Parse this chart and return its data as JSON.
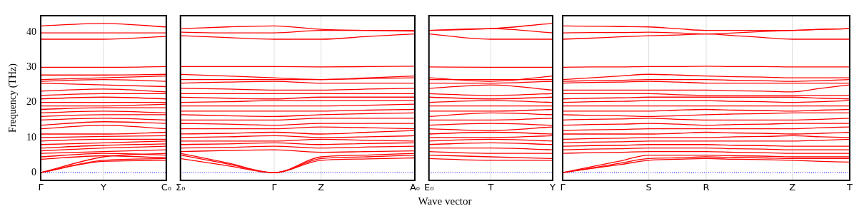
{
  "chart_data": [
    {
      "type": "line",
      "ylabel": "Frequency (THz)",
      "categories": [
        "Γ",
        "Y",
        "C₀"
      ],
      "ylim": [
        -2.2,
        44.7
      ],
      "yticks": [
        0,
        10,
        20,
        30,
        40
      ],
      "ref_lines": [
        {
          "axis": "y",
          "value": 0,
          "color": "#0000ff",
          "line_style": "dotted"
        },
        {
          "axis": "x",
          "value": "Y",
          "color": "#dddddd"
        }
      ],
      "series": [
        {
          "color": "#ff0000",
          "values": [
            0,
            3.2,
            3.5
          ]
        },
        {
          "color": "#ff0000",
          "values": [
            0,
            3.5,
            4
          ]
        },
        {
          "color": "#ff0000",
          "values": [
            0,
            4.5,
            5.5
          ]
        },
        {
          "color": "#ff0000",
          "values": [
            3.8,
            4.8,
            4.2
          ]
        },
        {
          "color": "#ff0000",
          "values": [
            4.5,
            5.5,
            5
          ]
        },
        {
          "color": "#ff0000",
          "values": [
            5.5,
            6,
            6.5
          ]
        },
        {
          "color": "#ff0000",
          "values": [
            6.2,
            7,
            7.5
          ]
        },
        {
          "color": "#ff0000",
          "values": [
            7,
            7.8,
            8.2
          ]
        },
        {
          "color": "#ff0000",
          "values": [
            8,
            8.5,
            9
          ]
        },
        {
          "color": "#ff0000",
          "values": [
            9,
            9.5,
            9.5
          ]
        },
        {
          "color": "#ff0000",
          "values": [
            10,
            10.3,
            10.5
          ]
        },
        {
          "color": "#ff0000",
          "values": [
            11,
            11,
            11.5
          ]
        },
        {
          "color": "#ff0000",
          "values": [
            12.5,
            13.5,
            12.5
          ]
        },
        {
          "color": "#ff0000",
          "values": [
            13.5,
            14.5,
            14
          ]
        },
        {
          "color": "#ff0000",
          "values": [
            15,
            15.5,
            15
          ]
        },
        {
          "color": "#ff0000",
          "values": [
            16,
            16.5,
            16.5
          ]
        },
        {
          "color": "#ff0000",
          "values": [
            17,
            17.5,
            17
          ]
        },
        {
          "color": "#ff0000",
          "values": [
            18,
            18.5,
            18.5
          ]
        },
        {
          "color": "#ff0000",
          "values": [
            19,
            19,
            19.5
          ]
        },
        {
          "color": "#ff0000",
          "values": [
            20,
            20,
            20
          ]
        },
        {
          "color": "#ff0000",
          "values": [
            21,
            21.5,
            21
          ]
        },
        {
          "color": "#ff0000",
          "values": [
            22,
            22.5,
            22.5
          ]
        },
        {
          "color": "#ff0000",
          "values": [
            23.2,
            23.8,
            23
          ]
        },
        {
          "color": "#ff0000",
          "values": [
            25.5,
            25,
            24.5
          ]
        },
        {
          "color": "#ff0000",
          "values": [
            26,
            26.5,
            26
          ]
        },
        {
          "color": "#ff0000",
          "values": [
            26.5,
            27,
            27.5
          ]
        },
        {
          "color": "#ff0000",
          "values": [
            27.8,
            27.8,
            28
          ]
        },
        {
          "color": "#ff0000",
          "values": [
            30,
            30,
            30.2
          ]
        },
        {
          "color": "#ff0000",
          "values": [
            38,
            38,
            38.8
          ]
        },
        {
          "color": "#ff0000",
          "values": [
            39.8,
            39.8,
            39.8
          ]
        },
        {
          "color": "#ff0000",
          "values": [
            41.8,
            42.5,
            41.5
          ]
        }
      ]
    },
    {
      "type": "line",
      "tick_labels": "x",
      "categories": [
        "Σ₀",
        null,
        "Γ",
        "Z",
        null,
        "A₀"
      ],
      "ylim": [
        -2.2,
        44.7
      ],
      "yticks": [
        0,
        10,
        20,
        30,
        40
      ],
      "ref_lines": [
        {
          "axis": "y",
          "value": 0,
          "color": "#0000ff",
          "line_style": "dotted"
        },
        {
          "axis": "x",
          "value": "Γ",
          "color": "#dddddd"
        },
        {
          "axis": "x",
          "value": "Z",
          "color": "#dddddd"
        }
      ],
      "series": [
        {
          "color": "#ff0000",
          "values": [
            4,
            2,
            0,
            3.5,
            3.9,
            4.2
          ]
        },
        {
          "color": "#ff0000",
          "values": [
            5,
            2.5,
            0,
            4,
            4.5,
            5
          ]
        },
        {
          "color": "#ff0000",
          "values": [
            5.5,
            2.8,
            0,
            4.5,
            5,
            5.5
          ]
        },
        {
          "color": "#ff0000",
          "values": [
            6,
            6.3,
            6.5,
            5.8,
            6,
            6.2
          ]
        },
        {
          "color": "#ff0000",
          "values": [
            7,
            7.2,
            7.5,
            7,
            7.3,
            7.5
          ]
        },
        {
          "color": "#ff0000",
          "values": [
            8,
            8.2,
            8.5,
            8,
            8.3,
            8.5
          ]
        },
        {
          "color": "#ff0000",
          "values": [
            9,
            9,
            9,
            9.5,
            9.2,
            9
          ]
        },
        {
          "color": "#ff0000",
          "values": [
            10,
            10.2,
            10.5,
            10,
            10.2,
            10.5
          ]
        },
        {
          "color": "#ff0000",
          "values": [
            11,
            11.2,
            11.5,
            11,
            11.5,
            12
          ]
        },
        {
          "color": "#ff0000",
          "values": [
            12.5,
            12.5,
            12.5,
            13,
            12.8,
            12.5
          ]
        },
        {
          "color": "#ff0000",
          "values": [
            14,
            13.8,
            13.5,
            14,
            14,
            14
          ]
        },
        {
          "color": "#ff0000",
          "values": [
            15,
            15,
            15,
            15.5,
            15.5,
            15.5
          ]
        },
        {
          "color": "#ff0000",
          "values": [
            16.5,
            16.2,
            16,
            16.5,
            16.8,
            17
          ]
        },
        {
          "color": "#ff0000",
          "values": [
            17.5,
            17.5,
            17.5,
            17.5,
            17.8,
            18
          ]
        },
        {
          "color": "#ff0000",
          "values": [
            19,
            19,
            19,
            19,
            19.2,
            19.5
          ]
        },
        {
          "color": "#ff0000",
          "values": [
            20,
            20.2,
            20.5,
            20.5,
            20.5,
            20.5
          ]
        },
        {
          "color": "#ff0000",
          "values": [
            21.5,
            21.2,
            21,
            21.5,
            21.5,
            21.5
          ]
        },
        {
          "color": "#ff0000",
          "values": [
            22.5,
            22.5,
            22.5,
            22.5,
            22.5,
            22.5
          ]
        },
        {
          "color": "#ff0000",
          "values": [
            24,
            23.8,
            23.5,
            23.5,
            23.8,
            24
          ]
        },
        {
          "color": "#ff0000",
          "values": [
            25.5,
            25.8,
            26,
            25.5,
            25.5,
            25.5
          ]
        },
        {
          "color": "#ff0000",
          "values": [
            26.5,
            26.5,
            26.5,
            26.5,
            26.8,
            27
          ]
        },
        {
          "color": "#ff0000",
          "values": [
            28,
            27.5,
            27,
            26.5,
            27,
            27.5
          ]
        },
        {
          "color": "#ff0000",
          "values": [
            30.2,
            30.2,
            30.2,
            30.1,
            30.2,
            30.3
          ]
        },
        {
          "color": "#ff0000",
          "values": [
            39,
            38.5,
            38,
            38,
            38.8,
            39.5
          ]
        },
        {
          "color": "#ff0000",
          "values": [
            40,
            39.8,
            39.8,
            40.5,
            40.5,
            40.5
          ]
        },
        {
          "color": "#ff0000",
          "values": [
            41,
            41.5,
            41.8,
            40.8,
            40.5,
            40.3
          ]
        }
      ]
    },
    {
      "type": "line",
      "tick_labels": "x",
      "xlabel": "Wave vector",
      "categories": [
        "E₀",
        "T",
        "Y"
      ],
      "ylim": [
        -2.2,
        44.7
      ],
      "yticks": [
        0,
        10,
        20,
        30,
        40
      ],
      "ref_lines": [
        {
          "axis": "y",
          "value": 0,
          "color": "#0000ff",
          "line_style": "dotted"
        },
        {
          "axis": "x",
          "value": "T",
          "color": "#dddddd"
        }
      ],
      "series": [
        {
          "color": "#ff0000",
          "values": [
            4,
            3.5,
            3.5
          ]
        },
        {
          "color": "#ff0000",
          "values": [
            5,
            4.5,
            4
          ]
        },
        {
          "color": "#ff0000",
          "values": [
            6,
            5.5,
            5.5
          ]
        },
        {
          "color": "#ff0000",
          "values": [
            7,
            7,
            6.5
          ]
        },
        {
          "color": "#ff0000",
          "values": [
            8,
            8.5,
            8
          ]
        },
        {
          "color": "#ff0000",
          "values": [
            9,
            9.5,
            9
          ]
        },
        {
          "color": "#ff0000",
          "values": [
            10,
            10,
            10.5
          ]
        },
        {
          "color": "#ff0000",
          "values": [
            11,
            11.5,
            11
          ]
        },
        {
          "color": "#ff0000",
          "values": [
            12.5,
            12,
            13
          ]
        },
        {
          "color": "#ff0000",
          "values": [
            13.5,
            14,
            13.5
          ]
        },
        {
          "color": "#ff0000",
          "values": [
            15,
            15,
            15.5
          ]
        },
        {
          "color": "#ff0000",
          "values": [
            16,
            17,
            16.5
          ]
        },
        {
          "color": "#ff0000",
          "values": [
            17.5,
            17.5,
            18
          ]
        },
        {
          "color": "#ff0000",
          "values": [
            19,
            19,
            19
          ]
        },
        {
          "color": "#ff0000",
          "values": [
            20,
            20.5,
            20
          ]
        },
        {
          "color": "#ff0000",
          "values": [
            21.5,
            21,
            21.5
          ]
        },
        {
          "color": "#ff0000",
          "values": [
            22.5,
            22,
            22.5
          ]
        },
        {
          "color": "#ff0000",
          "values": [
            24,
            25,
            23.5
          ]
        },
        {
          "color": "#ff0000",
          "values": [
            25.5,
            25.5,
            26
          ]
        },
        {
          "color": "#ff0000",
          "values": [
            26.5,
            26.5,
            26.5
          ]
        },
        {
          "color": "#ff0000",
          "values": [
            27,
            26,
            27.5
          ]
        },
        {
          "color": "#ff0000",
          "values": [
            30.1,
            30,
            30
          ]
        },
        {
          "color": "#ff0000",
          "values": [
            39.5,
            38,
            38
          ]
        },
        {
          "color": "#ff0000",
          "values": [
            40.5,
            41,
            42.5
          ]
        },
        {
          "color": "#ff0000",
          "values": [
            40.5,
            41,
            39.8
          ]
        }
      ]
    },
    {
      "type": "line",
      "tick_labels": "x",
      "categories": [
        "Γ",
        null,
        null,
        "S",
        null,
        "R",
        null,
        null,
        "Z",
        null,
        "T"
      ],
      "ylim": [
        -2.2,
        44.7
      ],
      "yticks": [
        0,
        10,
        20,
        30,
        40
      ],
      "ref_lines": [
        {
          "axis": "y",
          "value": 0,
          "color": "#0000ff",
          "line_style": "dotted"
        },
        {
          "axis": "x",
          "value": "S",
          "color": "#dddddd"
        },
        {
          "axis": "x",
          "value": "R",
          "color": "#dddddd"
        },
        {
          "axis": "x",
          "value": "Z",
          "color": "#dddddd"
        }
      ],
      "series": [
        {
          "color": "#ff0000",
          "values": [
            0,
            1.2,
            2.3,
            3.5,
            3.8,
            4,
            3.8,
            3.7,
            3.5,
            3.2,
            3
          ]
        },
        {
          "color": "#ff0000",
          "values": [
            0,
            1.3,
            2.7,
            4,
            4.2,
            4.5,
            4.3,
            4.2,
            4,
            4,
            4
          ]
        },
        {
          "color": "#ff0000",
          "values": [
            0,
            1.7,
            3.3,
            5,
            5,
            5,
            4.8,
            4.7,
            4.5,
            4.5,
            4.5
          ]
        },
        {
          "color": "#ff0000",
          "values": [
            5.5,
            5.7,
            5.8,
            6,
            6,
            6,
            5.8,
            5.7,
            5.5,
            5.5,
            5.5
          ]
        },
        {
          "color": "#ff0000",
          "values": [
            6.5,
            6.7,
            6.8,
            7,
            7,
            7,
            6.8,
            6.7,
            6.5,
            6.5,
            6.5
          ]
        },
        {
          "color": "#ff0000",
          "values": [
            7.5,
            7.7,
            7.8,
            8,
            8,
            8,
            7.8,
            7.7,
            7.5,
            7.5,
            7.5
          ]
        },
        {
          "color": "#ff0000",
          "values": [
            8.5,
            8.7,
            8.8,
            9,
            9,
            9,
            9,
            9,
            9,
            9.2,
            9.5
          ]
        },
        {
          "color": "#ff0000",
          "values": [
            9.5,
            9.7,
            9.8,
            10,
            10,
            10,
            10.2,
            10.3,
            10.5,
            10.2,
            10
          ]
        },
        {
          "color": "#ff0000",
          "values": [
            11,
            11,
            11,
            11,
            11.2,
            11.5,
            11.3,
            11.2,
            11,
            11.2,
            11.5
          ]
        },
        {
          "color": "#ff0000",
          "values": [
            12,
            12.2,
            12.3,
            12.5,
            12.5,
            12.5,
            12.5,
            12.5,
            12.5,
            12.8,
            13
          ]
        },
        {
          "color": "#ff0000",
          "values": [
            13.5,
            13.7,
            13.8,
            14,
            13.8,
            13.5,
            13.7,
            13.8,
            14,
            14,
            14
          ]
        },
        {
          "color": "#ff0000",
          "values": [
            15,
            15.2,
            15.3,
            15.5,
            15.2,
            15,
            15,
            15,
            15,
            15.2,
            15.5
          ]
        },
        {
          "color": "#ff0000",
          "values": [
            16.5,
            16.3,
            16.2,
            16,
            16.2,
            16.5,
            16.7,
            16.8,
            17,
            17,
            17
          ]
        },
        {
          "color": "#ff0000",
          "values": [
            17.5,
            17.5,
            17.5,
            17.5,
            17.8,
            18,
            17.8,
            17.7,
            17.5,
            17.8,
            18
          ]
        },
        {
          "color": "#ff0000",
          "values": [
            19,
            19,
            19,
            19,
            19,
            19,
            19,
            19,
            19,
            19,
            19
          ]
        },
        {
          "color": "#ff0000",
          "values": [
            20,
            20.2,
            20.3,
            20.5,
            20.5,
            20.5,
            20.3,
            20.2,
            20,
            20.2,
            20.5
          ]
        },
        {
          "color": "#ff0000",
          "values": [
            21,
            21.2,
            21.3,
            21.5,
            21.5,
            21.5,
            21.5,
            21.5,
            21.5,
            21.2,
            21
          ]
        },
        {
          "color": "#ff0000",
          "values": [
            22.5,
            22.5,
            22.5,
            22.5,
            22.2,
            22,
            22,
            22,
            22,
            22,
            22
          ]
        },
        {
          "color": "#ff0000",
          "values": [
            23.5,
            23.5,
            23.5,
            23.5,
            23.5,
            23.5,
            23.3,
            23.2,
            23,
            24,
            25
          ]
        },
        {
          "color": "#ff0000",
          "values": [
            25.5,
            25.7,
            25.8,
            26,
            25.8,
            25.5,
            25.5,
            25.5,
            25.5,
            25.5,
            25.5
          ]
        },
        {
          "color": "#ff0000",
          "values": [
            26,
            26.2,
            26.3,
            26.5,
            26.5,
            26.5,
            26.3,
            26.2,
            26,
            26.2,
            26.5
          ]
        },
        {
          "color": "#ff0000",
          "values": [
            26.5,
            27,
            27.5,
            28,
            27.8,
            27.5,
            27.3,
            27.2,
            27,
            27,
            27
          ]
        },
        {
          "color": "#ff0000",
          "values": [
            30,
            30.1,
            30.1,
            30.2,
            30.2,
            30.3,
            30.2,
            30.2,
            30.1,
            30.1,
            30.1
          ]
        },
        {
          "color": "#ff0000",
          "values": [
            38,
            38.3,
            38.7,
            39,
            39.2,
            39.5,
            39,
            38.5,
            38,
            38,
            38
          ]
        },
        {
          "color": "#ff0000",
          "values": [
            39.8,
            39.9,
            39.9,
            40,
            39.8,
            39.5,
            39.8,
            40.2,
            40.5,
            40.8,
            41
          ]
        },
        {
          "color": "#ff0000",
          "values": [
            41.8,
            41.7,
            41.6,
            41.5,
            41,
            40.5,
            40.5,
            40.5,
            40.5,
            40.8,
            41
          ]
        }
      ]
    }
  ]
}
